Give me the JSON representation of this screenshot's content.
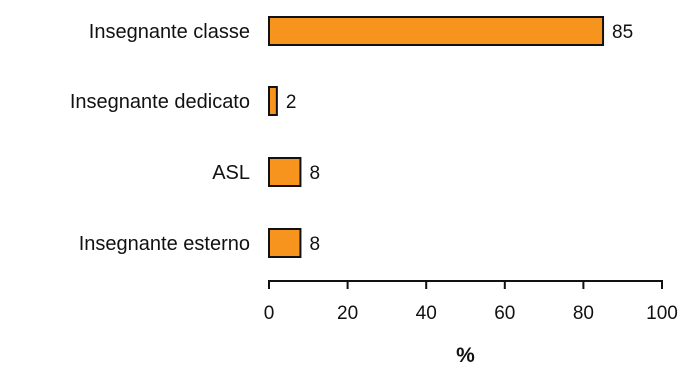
{
  "chart_data": {
    "type": "bar",
    "orientation": "horizontal",
    "categories": [
      "Insegnante classe",
      "Insegnante dedicato",
      "ASL",
      "Insegnante esterno"
    ],
    "values": [
      85,
      2,
      8,
      8
    ],
    "value_labels": [
      "85",
      "2",
      "8",
      "8"
    ],
    "xlabel": "%",
    "xlim": [
      0,
      100
    ],
    "xticks": [
      0,
      20,
      40,
      60,
      80,
      100
    ],
    "xtick_labels": [
      "0",
      "20",
      "40",
      "60",
      "80",
      "100"
    ],
    "grid": false,
    "legend": "none",
    "bar_color": "#f7941d",
    "bar_outline": "#111111"
  }
}
